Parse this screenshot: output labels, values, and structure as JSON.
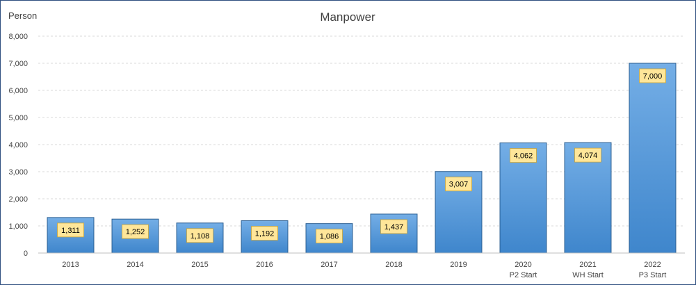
{
  "chart_data": {
    "type": "bar",
    "title": "Manpower",
    "ylabel": "Person",
    "xlabel": "",
    "categories": [
      "2013",
      "2014",
      "2015",
      "2016",
      "2017",
      "2018",
      "2019",
      "2020",
      "2021",
      "2022"
    ],
    "sublabels": [
      "",
      "",
      "",
      "",
      "",
      "",
      "",
      "P2 Start",
      "WH Start",
      "P3 Start"
    ],
    "values": [
      1311,
      1252,
      1108,
      1192,
      1086,
      1437,
      3007,
      4062,
      4074,
      7000
    ],
    "data_labels": [
      "1,311",
      "1,252",
      "1,108",
      "1,192",
      "1,086",
      "1,437",
      "3,007",
      "4,062",
      "4,074",
      "7,000"
    ],
    "ylim": [
      0,
      8000
    ],
    "yticks": [
      0,
      1000,
      2000,
      3000,
      4000,
      5000,
      6000,
      7000,
      8000
    ],
    "ytick_labels": [
      "0",
      "1,000",
      "2,000",
      "3,000",
      "4,000",
      "5,000",
      "6,000",
      "7,000",
      "8,000"
    ],
    "grid": true,
    "legend": "none",
    "colors": {
      "bar_top": "#74aee6",
      "bar_bottom": "#3f86cc",
      "bar_border": "#2c5f92",
      "label_bg": "#ffe699",
      "label_border": "#c9a43a",
      "grid": "#d9d9d9",
      "frame": "#2f4f7f"
    }
  }
}
